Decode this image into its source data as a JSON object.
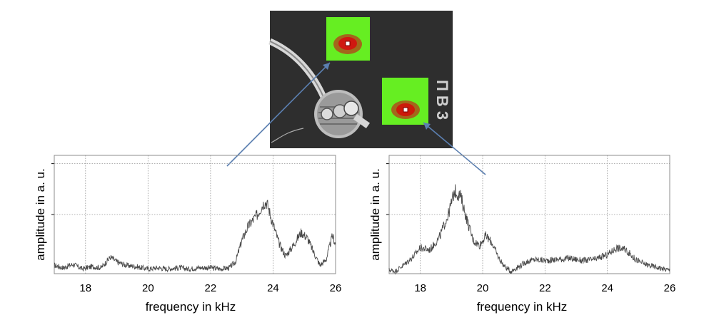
{
  "chart_data": [
    {
      "type": "line",
      "title": "",
      "xlabel": "frequency in kHz",
      "ylabel": "amplitude in a. u.",
      "xlim": [
        17,
        26
      ],
      "ylim": [
        0,
        1
      ],
      "x_ticks": [
        "18",
        "20",
        "22",
        "24",
        "26"
      ],
      "grid": true,
      "series": [
        {
          "x": [
            17.0,
            17.3,
            17.6,
            17.9,
            18.2,
            18.5,
            18.8,
            19.0,
            19.3,
            19.6,
            20.0,
            20.3,
            20.6,
            21.0,
            21.3,
            21.6,
            22.0,
            22.3,
            22.6,
            22.8,
            23.0,
            23.2,
            23.5,
            23.7,
            23.8,
            24.0,
            24.2,
            24.4,
            24.6,
            24.9,
            25.1,
            25.3,
            25.5,
            25.7,
            25.9,
            26.0
          ],
          "y": [
            0.07,
            0.05,
            0.08,
            0.04,
            0.06,
            0.05,
            0.14,
            0.1,
            0.07,
            0.06,
            0.04,
            0.05,
            0.04,
            0.05,
            0.04,
            0.05,
            0.05,
            0.04,
            0.05,
            0.1,
            0.28,
            0.4,
            0.5,
            0.6,
            0.6,
            0.42,
            0.25,
            0.15,
            0.22,
            0.35,
            0.3,
            0.18,
            0.07,
            0.12,
            0.32,
            0.25
          ]
        }
      ]
    },
    {
      "type": "line",
      "title": "",
      "xlabel": "frequency in kHz",
      "ylabel": "amplitude in a. u.",
      "xlim": [
        17,
        26
      ],
      "ylim": [
        0,
        1
      ],
      "x_ticks": [
        "18",
        "20",
        "22",
        "24",
        "26"
      ],
      "grid": true,
      "series": [
        {
          "x": [
            17.0,
            17.2,
            17.5,
            17.8,
            18.0,
            18.3,
            18.6,
            18.9,
            19.1,
            19.3,
            19.5,
            19.7,
            19.9,
            20.1,
            20.3,
            20.5,
            20.7,
            20.9,
            21.1,
            21.4,
            21.7,
            22.0,
            22.4,
            22.8,
            23.2,
            23.6,
            24.0,
            24.3,
            24.6,
            24.9,
            25.2,
            25.5,
            25.8,
            26.0
          ],
          "y": [
            0.03,
            0.02,
            0.08,
            0.15,
            0.22,
            0.2,
            0.3,
            0.5,
            0.7,
            0.65,
            0.45,
            0.28,
            0.24,
            0.32,
            0.26,
            0.14,
            0.06,
            0.02,
            0.05,
            0.1,
            0.12,
            0.11,
            0.12,
            0.13,
            0.11,
            0.12,
            0.16,
            0.22,
            0.2,
            0.12,
            0.08,
            0.06,
            0.04,
            0.03
          ]
        }
      ]
    }
  ],
  "photo": {
    "description_labels": [
      "П В 3"
    ],
    "colors": {
      "background": "#2d2d2d",
      "hotspot_green": "#66ee22",
      "hotspot_red": "#cc1a0a",
      "pointer": "#5b7fb0"
    }
  }
}
